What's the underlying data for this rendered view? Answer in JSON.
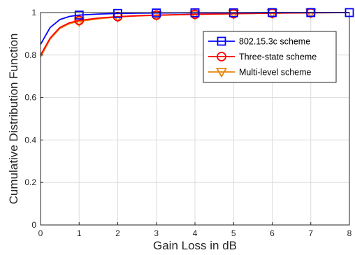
{
  "chart_data": {
    "type": "line",
    "xlabel": "Gain Loss in dB",
    "ylabel": "Cumulative Distribution Function",
    "xlim": [
      0,
      8
    ],
    "ylim": [
      0,
      1
    ],
    "x_ticks": [
      "0",
      "1",
      "2",
      "3",
      "4",
      "5",
      "6",
      "7",
      "8"
    ],
    "y_ticks": [
      "0",
      "0.2",
      "0.4",
      "0.6",
      "0.8",
      "1"
    ],
    "grid": true,
    "legend_position": "top-right",
    "series": [
      {
        "name": "802.15.3c scheme",
        "color": "#0000ff",
        "marker": "square",
        "x": [
          0,
          0.25,
          0.5,
          0.75,
          1,
          1.5,
          2,
          2.5,
          3,
          4,
          5,
          6,
          7,
          8
        ],
        "y": [
          0.85,
          0.93,
          0.967,
          0.982,
          0.988,
          0.993,
          0.996,
          0.997,
          0.998,
          0.999,
          0.999,
          1.0,
          1.0,
          1.0
        ],
        "marker_x": [
          1,
          2,
          3,
          4,
          5,
          6,
          7,
          8
        ],
        "marker_y": [
          0.988,
          0.996,
          0.998,
          0.999,
          0.999,
          1.0,
          1.0,
          1.0
        ]
      },
      {
        "name": "Three-state scheme",
        "color": "#ff0000",
        "marker": "circle",
        "x": [
          0,
          0.25,
          0.5,
          0.75,
          1,
          1.5,
          2,
          2.5,
          3,
          4,
          5,
          6,
          7,
          8
        ],
        "y": [
          0.8,
          0.88,
          0.93,
          0.952,
          0.963,
          0.974,
          0.981,
          0.985,
          0.988,
          0.992,
          0.995,
          0.997,
          0.999,
          1.0
        ],
        "marker_x": [
          1,
          2,
          3,
          4,
          5,
          6,
          7
        ],
        "marker_y": [
          0.963,
          0.981,
          0.988,
          0.992,
          0.995,
          0.997,
          0.999
        ]
      },
      {
        "name": "Multi-level scheme",
        "color": "#e8850c",
        "marker": "triangle-down",
        "x": [
          0,
          0.25,
          0.5,
          0.75,
          1,
          1.5,
          2,
          2.5,
          3,
          4,
          5,
          6,
          7,
          8
        ],
        "y": [
          0.79,
          0.875,
          0.925,
          0.948,
          0.958,
          0.971,
          0.979,
          0.984,
          0.987,
          0.991,
          0.994,
          0.997,
          0.999,
          1.0
        ],
        "marker_x": [
          1,
          2,
          3,
          4,
          5,
          6,
          7
        ],
        "marker_y": [
          0.958,
          0.979,
          0.987,
          0.991,
          0.994,
          0.997,
          0.999
        ]
      }
    ]
  }
}
